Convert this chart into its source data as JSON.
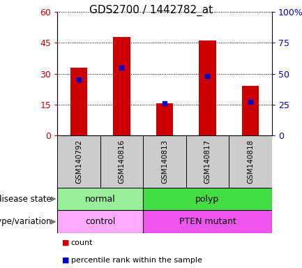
{
  "title": "GDS2700 / 1442782_at",
  "samples": [
    "GSM140792",
    "GSM140816",
    "GSM140813",
    "GSM140817",
    "GSM140818"
  ],
  "counts": [
    33,
    48,
    15.5,
    46,
    24
  ],
  "percentile_ranks": [
    45,
    55,
    26,
    48,
    27
  ],
  "ylim_left": [
    0,
    60
  ],
  "ylim_right": [
    0,
    100
  ],
  "yticks_left": [
    0,
    15,
    30,
    45,
    60
  ],
  "ytick_labels_left": [
    "0",
    "15",
    "30",
    "45",
    "60"
  ],
  "yticks_right": [
    0,
    25,
    50,
    75,
    100
  ],
  "ytick_labels_right": [
    "0",
    "25",
    "50",
    "75",
    "100%"
  ],
  "bar_color": "#cc0000",
  "dot_color": "#0000cc",
  "disease_groups": [
    {
      "label": "normal",
      "start": 0,
      "end": 1,
      "color": "#99ee99"
    },
    {
      "label": "polyp",
      "start": 2,
      "end": 4,
      "color": "#44dd44"
    }
  ],
  "geno_groups": [
    {
      "label": "control",
      "start": 0,
      "end": 1,
      "color": "#ffaaff"
    },
    {
      "label": "PTEN mutant",
      "start": 2,
      "end": 4,
      "color": "#ee55ee"
    }
  ],
  "legend_count_label": "count",
  "legend_pct_label": "percentile rank within the sample",
  "label_disease_state": "disease state",
  "label_genotype": "genotype/variation",
  "tick_color_left": "#cc0000",
  "tick_color_right": "#0000cc",
  "sample_bg": "#cccccc"
}
